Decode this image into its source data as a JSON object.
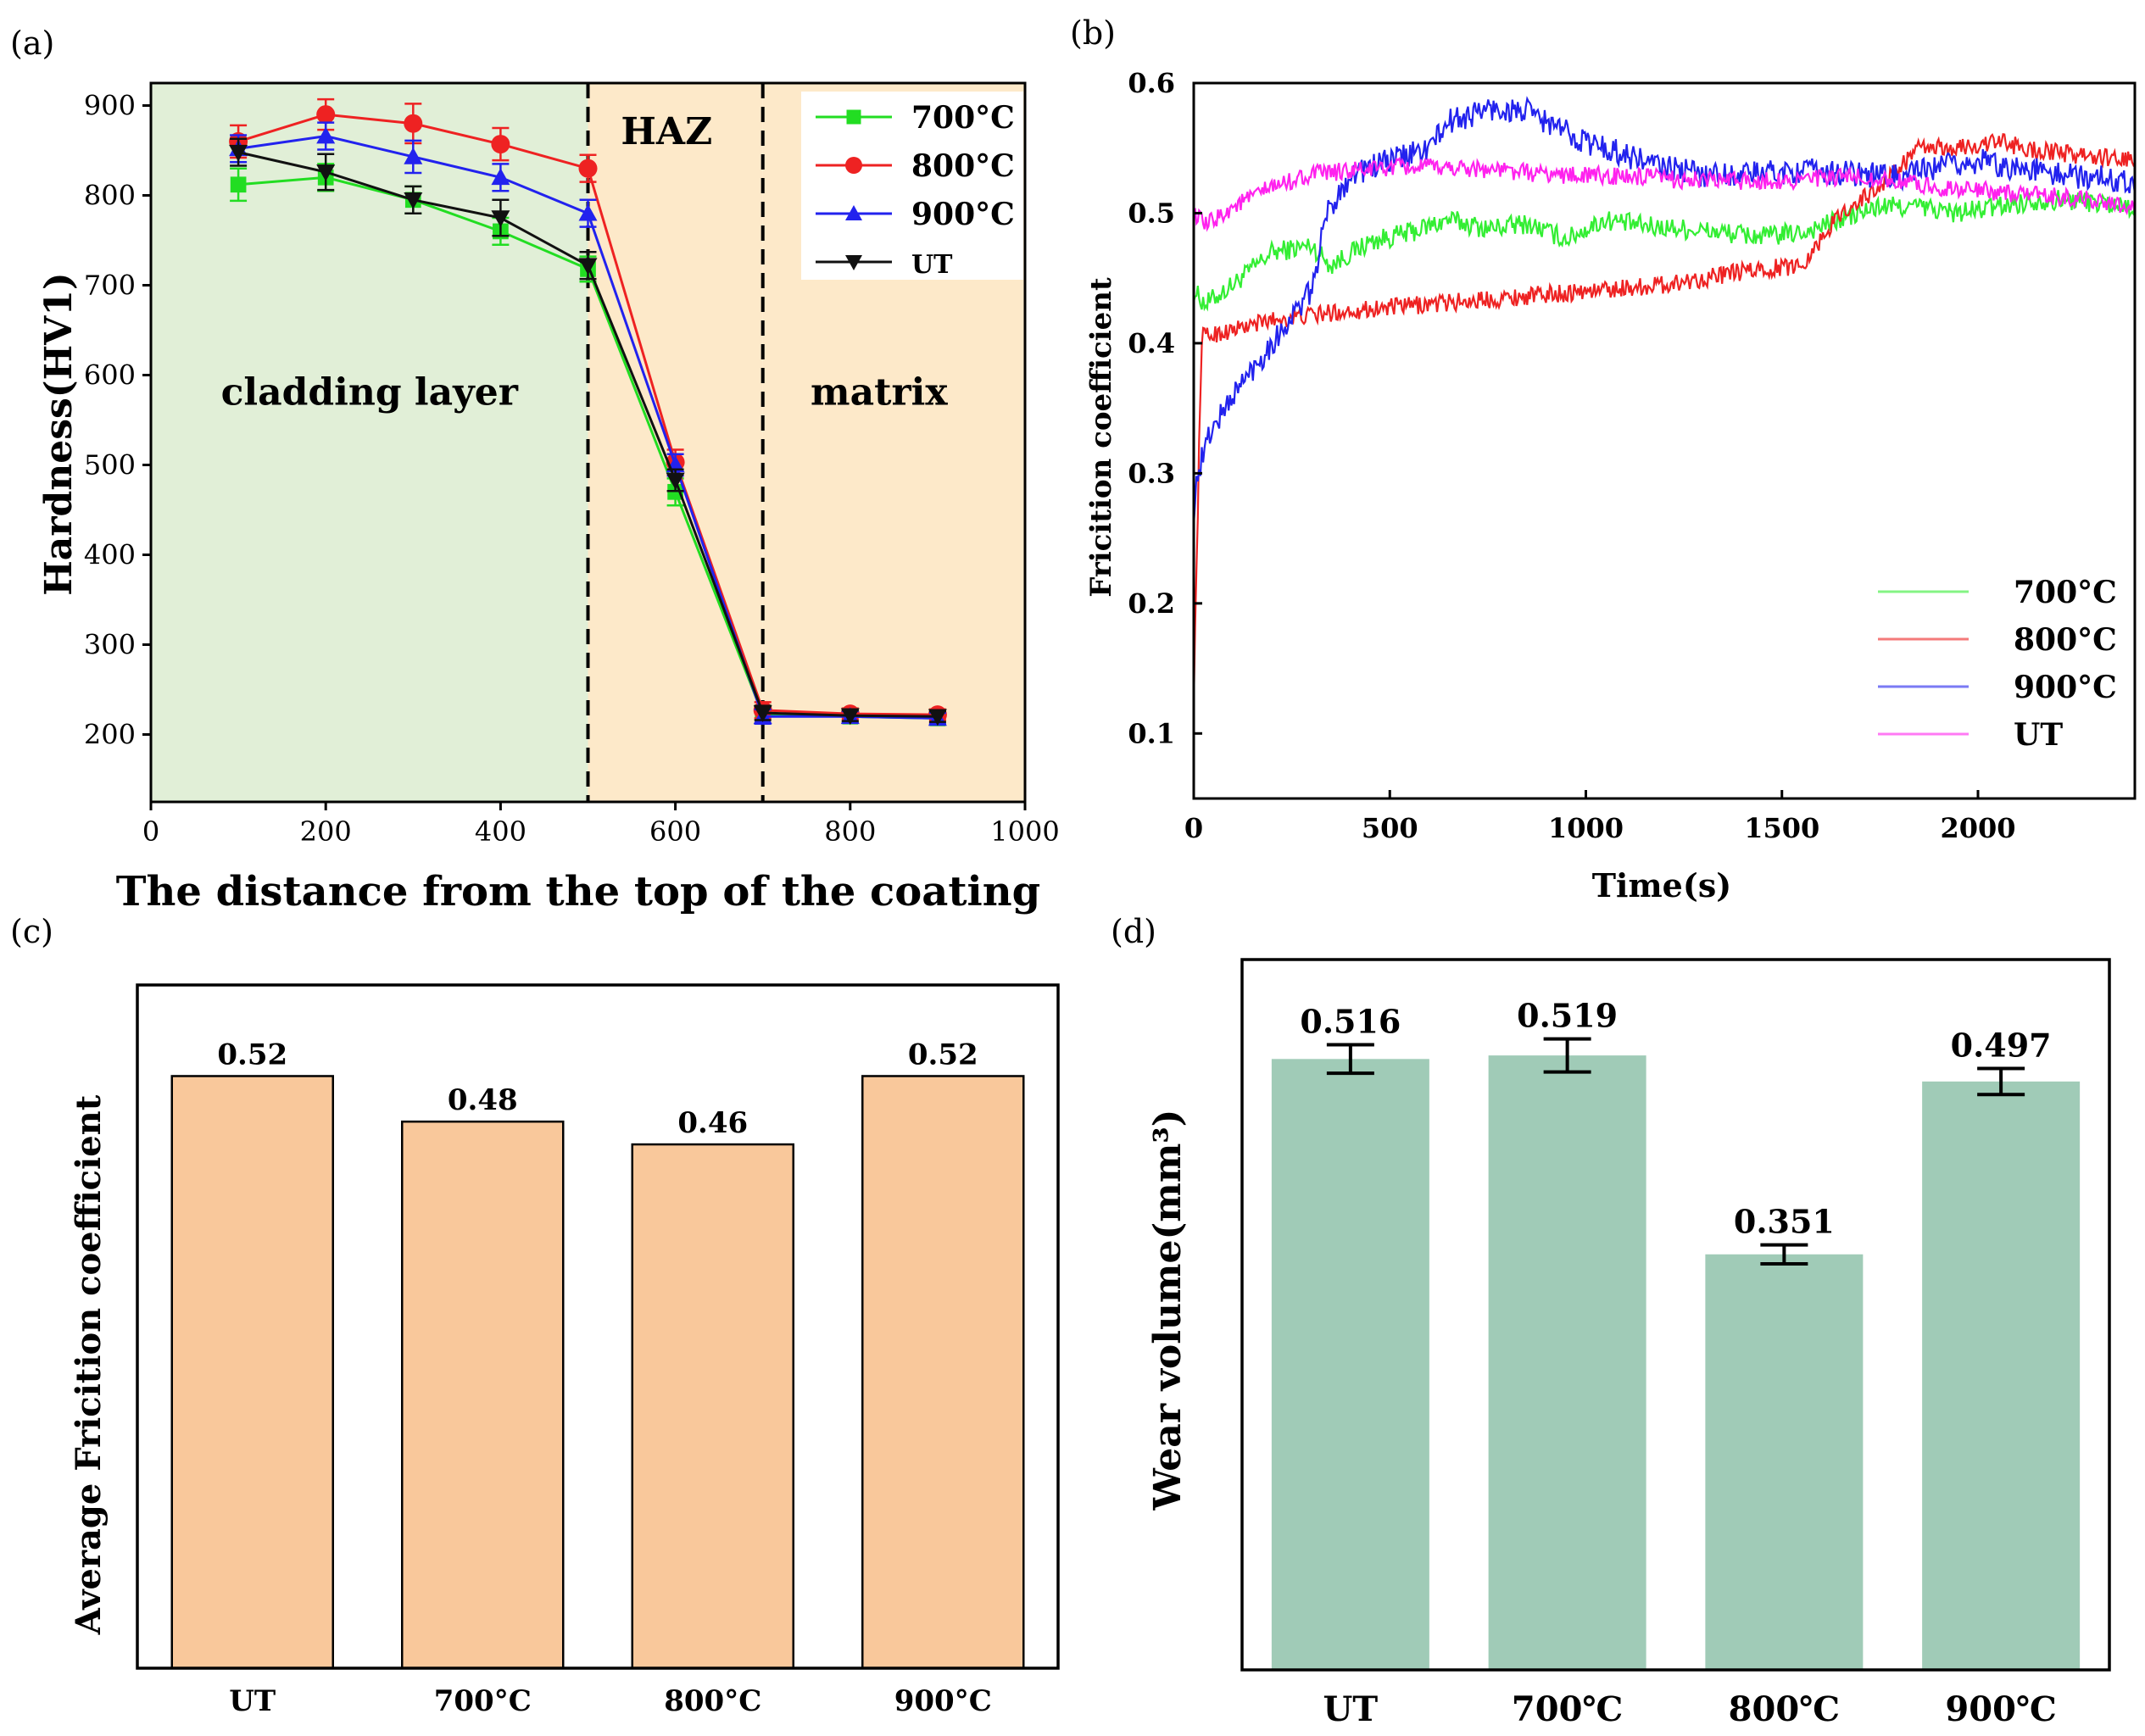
{
  "chart_data": [
    {
      "panel_label": "(a)",
      "type": "line",
      "xlabel": "The distance from the top of the coating",
      "ylabel": "Hardness(HV1)",
      "xlim": [
        0,
        1000
      ],
      "ylim": [
        125,
        925
      ],
      "xticks": [
        "0",
        "200",
        "400",
        "600",
        "800",
        "1000"
      ],
      "yticks": [
        "200",
        "300",
        "400",
        "500",
        "600",
        "700",
        "800",
        "900"
      ],
      "regions": [
        {
          "name": "cladding layer",
          "x_from": 0,
          "x_to": 500,
          "color": "#e1efd7"
        },
        {
          "name": "HAZ",
          "x_from": 500,
          "x_to": 700,
          "color": "#fde9c9"
        },
        {
          "name": "matrix",
          "x_from": 700,
          "x_to": 1000,
          "color": "#fde9c9"
        }
      ],
      "boundaries": [
        500,
        700
      ],
      "x": [
        100,
        200,
        300,
        400,
        500,
        600,
        700,
        800,
        900
      ],
      "series": [
        {
          "name": "700°C",
          "color": "#22dd22",
          "marker": "square",
          "values": [
            812,
            820,
            795,
            760,
            718,
            470,
            222,
            220,
            218
          ],
          "errors": [
            18,
            15,
            15,
            15,
            14,
            15,
            10,
            7,
            7
          ]
        },
        {
          "name": "800°C",
          "color": "#ee2222",
          "marker": "circle",
          "values": [
            860,
            890,
            880,
            857,
            830,
            503,
            227,
            223,
            222
          ],
          "errors": [
            18,
            17,
            22,
            18,
            15,
            14,
            9,
            6,
            6
          ]
        },
        {
          "name": "900°C",
          "color": "#2222ee",
          "marker": "triangle-up",
          "values": [
            852,
            866,
            843,
            820,
            780,
            500,
            220,
            220,
            218
          ],
          "errors": [
            15,
            15,
            18,
            15,
            15,
            12,
            8,
            6,
            6
          ]
        },
        {
          "name": "UT",
          "color": "#111111",
          "marker": "triangle-down",
          "values": [
            848,
            826,
            795,
            775,
            722,
            483,
            224,
            221,
            220
          ],
          "errors": [
            15,
            20,
            15,
            20,
            15,
            12,
            8,
            6,
            6
          ]
        }
      ]
    },
    {
      "panel_label": "(b)",
      "type": "line",
      "xlabel": "Time(s)",
      "ylabel": "Fricition coefficient",
      "xlim": [
        0,
        2400
      ],
      "ylim": [
        0.05,
        0.6
      ],
      "xticks": [
        "0",
        "500",
        "1000",
        "1500",
        "2000"
      ],
      "yticks": [
        "0.1",
        "0.2",
        "0.3",
        "0.4",
        "0.5",
        "0.6"
      ],
      "series": [
        {
          "name": "700°C",
          "color": "#33ee33",
          "noise": 0.008,
          "x": [
            0,
            30,
            100,
            200,
            300,
            350,
            450,
            550,
            650,
            750,
            850,
            950,
            1050,
            1150,
            1250,
            1350,
            1450,
            1550,
            1650,
            1750,
            1850,
            1950,
            2050,
            2150,
            2250,
            2400
          ],
          "y": [
            0.44,
            0.43,
            0.445,
            0.47,
            0.475,
            0.46,
            0.478,
            0.485,
            0.495,
            0.488,
            0.492,
            0.48,
            0.495,
            0.49,
            0.488,
            0.485,
            0.482,
            0.485,
            0.495,
            0.505,
            0.505,
            0.5,
            0.505,
            0.51,
            0.51,
            0.505
          ]
        },
        {
          "name": "800°C",
          "color": "#ee2222",
          "noise": 0.007,
          "x": [
            0,
            20,
            100,
            200,
            400,
            600,
            800,
            1000,
            1200,
            1400,
            1550,
            1650,
            1750,
            1850,
            1950,
            2050,
            2150,
            2250,
            2400
          ],
          "y": [
            0.13,
            0.405,
            0.41,
            0.418,
            0.425,
            0.43,
            0.435,
            0.44,
            0.445,
            0.455,
            0.46,
            0.5,
            0.52,
            0.55,
            0.55,
            0.555,
            0.548,
            0.545,
            0.54
          ]
        },
        {
          "name": "900°C",
          "color": "#2222ee",
          "noise": 0.01,
          "x": [
            0,
            10,
            40,
            100,
            200,
            300,
            340,
            400,
            500,
            600,
            650,
            750,
            850,
            900,
            1000,
            1100,
            1200,
            1300,
            1400,
            1500,
            1600,
            1700,
            1800,
            1900,
            2000,
            2100,
            2200,
            2400
          ],
          "y": [
            0.27,
            0.3,
            0.33,
            0.36,
            0.4,
            0.44,
            0.5,
            0.53,
            0.54,
            0.55,
            0.57,
            0.58,
            0.578,
            0.57,
            0.555,
            0.545,
            0.535,
            0.53,
            0.53,
            0.532,
            0.532,
            0.53,
            0.528,
            0.535,
            0.54,
            0.535,
            0.53,
            0.525
          ]
        },
        {
          "name": "UT",
          "color": "#ff22ee",
          "noise": 0.007,
          "x": [
            0,
            30,
            100,
            200,
            300,
            500,
            700,
            900,
            1100,
            1300,
            1500,
            1700,
            1900,
            2100,
            2300,
            2400
          ],
          "y": [
            0.5,
            0.49,
            0.505,
            0.52,
            0.53,
            0.535,
            0.535,
            0.53,
            0.528,
            0.525,
            0.525,
            0.528,
            0.52,
            0.515,
            0.51,
            0.505
          ]
        }
      ]
    },
    {
      "panel_label": "(c)",
      "type": "bar",
      "ylabel": "Average Fricition coefficient",
      "ylim": [
        0,
        0.6
      ],
      "color": "#f9c89b",
      "categories": [
        "UT",
        "700°C",
        "800°C",
        "900°C"
      ],
      "values": [
        0.52,
        0.48,
        0.46,
        0.52
      ],
      "value_labels": [
        "0.52",
        "0.48",
        "0.46",
        "0.52"
      ]
    },
    {
      "panel_label": "(d)",
      "type": "bar",
      "ylabel": "Wear volume(mm³)",
      "ylim": [
        0,
        0.6
      ],
      "color": "#a0cbb7",
      "categories": [
        "UT",
        "700℃",
        "800℃",
        "900℃"
      ],
      "values": [
        0.516,
        0.519,
        0.351,
        0.497
      ],
      "errors": [
        0.012,
        0.014,
        0.008,
        0.011
      ],
      "value_labels": [
        "0.516",
        "0.519",
        "0.351",
        "0.497"
      ]
    }
  ]
}
